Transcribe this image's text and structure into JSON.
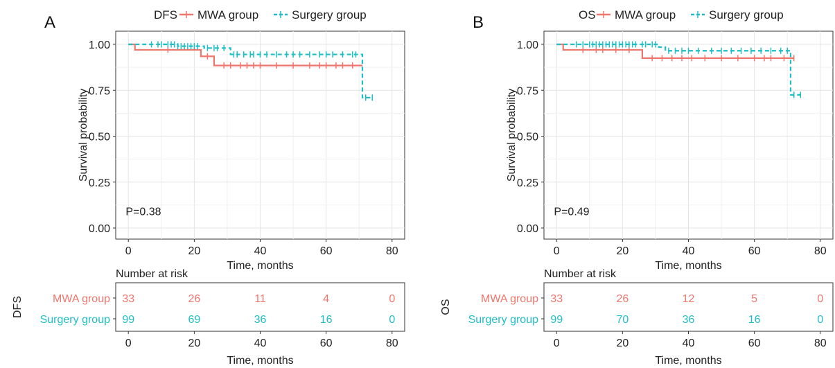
{
  "chart_data": [
    {
      "type": "line",
      "panel_label": "A",
      "legend_title": "DFS",
      "legend_placement": "top",
      "xlabel": "Time, months",
      "ylabel": "Survival probability",
      "xlim": [
        0,
        80
      ],
      "ylim": [
        0,
        1
      ],
      "x_ticks": [
        "0",
        "20",
        "40",
        "60",
        "80"
      ],
      "y_ticks": [
        "0.00",
        "0.25",
        "0.50",
        "0.75",
        "1.00"
      ],
      "grid": true,
      "pvalue_text": "P=0.38",
      "series": [
        {
          "name": "MWA group",
          "color": "#f0766d",
          "dashed": false,
          "steps": [
            [
              0,
              1.0
            ],
            [
              2,
              0.97
            ],
            [
              22,
              0.97
            ],
            [
              22,
              0.935
            ],
            [
              26,
              0.935
            ],
            [
              26,
              0.885
            ],
            [
              71,
              0.885
            ]
          ],
          "censor_times": [
            12,
            24,
            29,
            31,
            34,
            36,
            38,
            40,
            45,
            50,
            55,
            58,
            60,
            63,
            65,
            68
          ]
        },
        {
          "name": "Surgery group",
          "color": "#1fbec4",
          "dashed": true,
          "steps": [
            [
              0,
              1.0
            ],
            [
              15,
              1.0
            ],
            [
              15,
              0.99
            ],
            [
              23,
              0.99
            ],
            [
              23,
              0.98
            ],
            [
              31,
              0.98
            ],
            [
              31,
              0.945
            ],
            [
              71,
              0.945
            ],
            [
              71,
              0.71
            ],
            [
              74,
              0.71
            ]
          ],
          "censor_times": [
            7,
            9,
            10,
            12,
            13,
            14,
            15,
            16,
            17,
            18,
            19,
            20,
            21,
            24,
            26,
            27,
            29,
            32,
            33,
            35,
            37,
            38,
            40,
            42,
            45,
            48,
            50,
            52,
            55,
            58,
            60,
            62,
            65,
            68,
            69,
            72,
            74
          ]
        }
      ],
      "risk_table": {
        "title": "Number at risk",
        "ylabel": "DFS",
        "xlabel": "Time, months",
        "times": [
          "0",
          "20",
          "40",
          "60",
          "80"
        ],
        "rows": [
          {
            "label": "MWA group",
            "color": "#f0766d",
            "values": [
              "33",
              "26",
              "11",
              "4",
              "0"
            ]
          },
          {
            "label": "Surgery group",
            "color": "#1fbec4",
            "values": [
              "99",
              "69",
              "36",
              "16",
              "0"
            ]
          }
        ]
      }
    },
    {
      "type": "line",
      "panel_label": "B",
      "legend_title": "OS",
      "legend_placement": "top",
      "xlabel": "Time, months",
      "ylabel": "Survival probability",
      "xlim": [
        0,
        80
      ],
      "ylim": [
        0,
        1
      ],
      "x_ticks": [
        "0",
        "20",
        "40",
        "60",
        "80"
      ],
      "y_ticks": [
        "0.00",
        "0.25",
        "0.50",
        "0.75",
        "1.00"
      ],
      "grid": true,
      "pvalue_text": "P=0.49",
      "series": [
        {
          "name": "MWA group",
          "color": "#f0766d",
          "dashed": false,
          "steps": [
            [
              0,
              1.0
            ],
            [
              2,
              0.97
            ],
            [
              26,
              0.97
            ],
            [
              26,
              0.925
            ],
            [
              72,
              0.925
            ]
          ],
          "censor_times": [
            8,
            12,
            14,
            18,
            22,
            29,
            32,
            35,
            38,
            41,
            45,
            50,
            55,
            60,
            63,
            65,
            69,
            72
          ]
        },
        {
          "name": "Surgery group",
          "color": "#1fbec4",
          "dashed": true,
          "steps": [
            [
              0,
              1.0
            ],
            [
              31,
              1.0
            ],
            [
              31,
              0.985
            ],
            [
              33,
              0.985
            ],
            [
              33,
              0.965
            ],
            [
              71,
              0.965
            ],
            [
              71,
              0.725
            ],
            [
              74,
              0.725
            ]
          ],
          "censor_times": [
            6,
            8,
            10,
            11,
            12,
            13,
            14,
            15,
            16,
            17,
            18,
            19,
            20,
            21,
            22,
            23,
            24,
            26,
            27,
            29,
            30,
            34,
            36,
            38,
            40,
            43,
            47,
            50,
            53,
            56,
            59,
            62,
            65,
            68,
            70,
            72,
            74
          ]
        }
      ],
      "risk_table": {
        "title": "Number at risk",
        "ylabel": "OS",
        "xlabel": "Time, months",
        "times": [
          "0",
          "20",
          "40",
          "60",
          "80"
        ],
        "rows": [
          {
            "label": "MWA group",
            "color": "#f0766d",
            "values": [
              "33",
              "26",
              "12",
              "5",
              "0"
            ]
          },
          {
            "label": "Surgery group",
            "color": "#1fbec4",
            "values": [
              "99",
              "70",
              "36",
              "16",
              "0"
            ]
          }
        ]
      }
    }
  ]
}
